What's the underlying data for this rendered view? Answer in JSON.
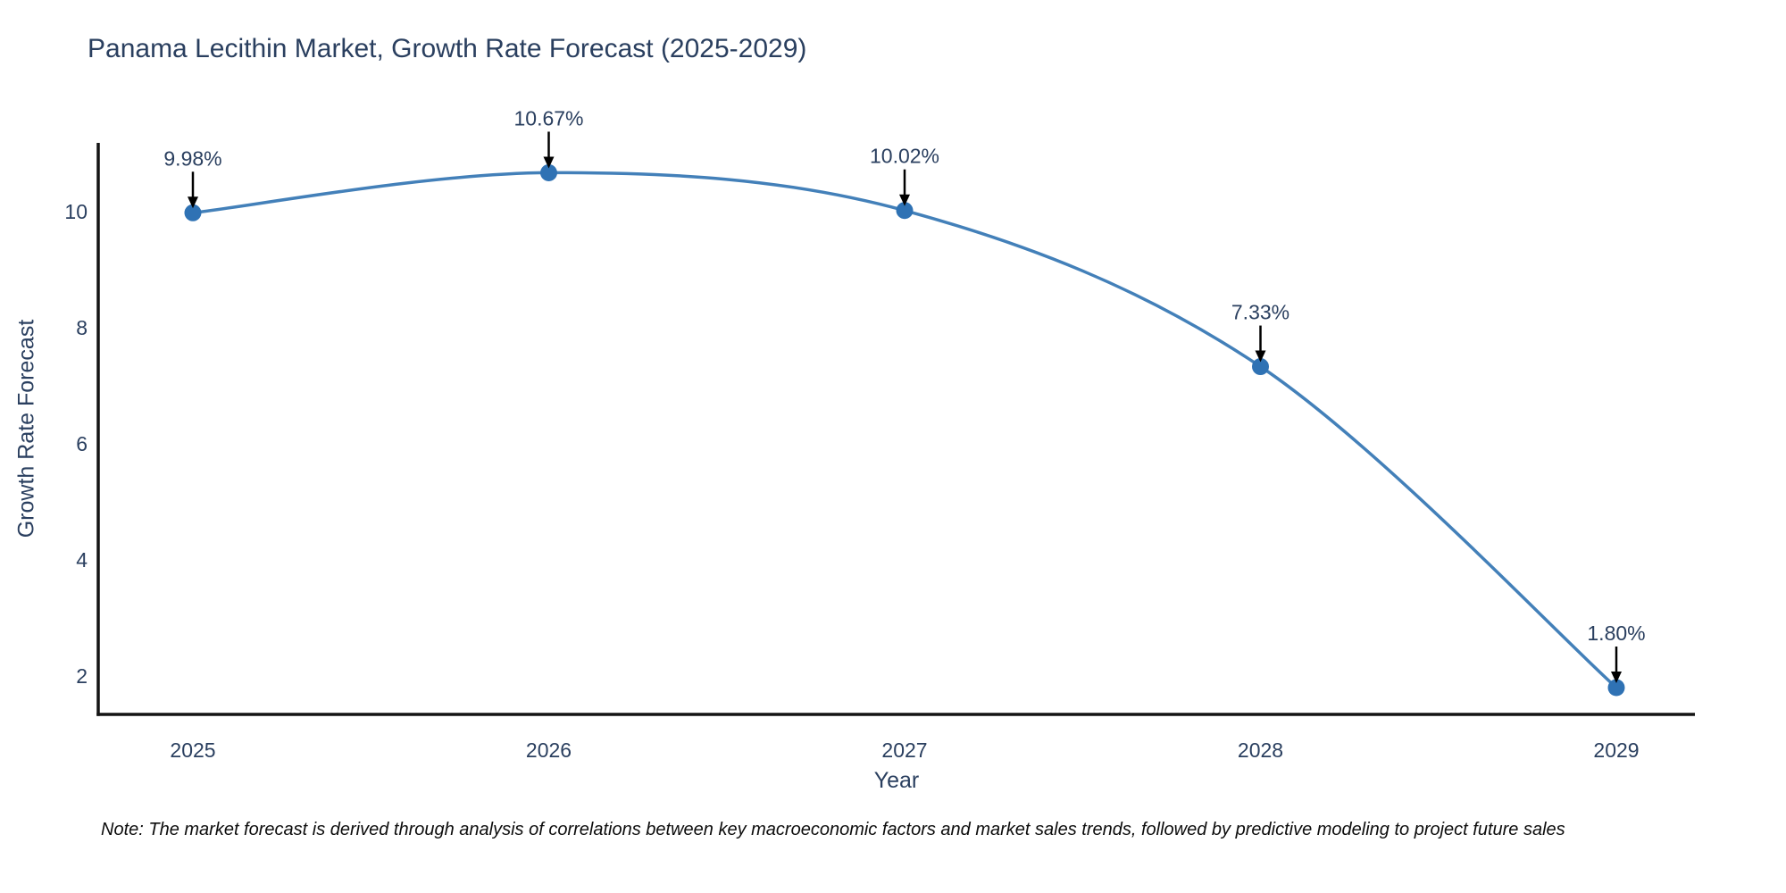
{
  "title": "Panama Lecithin Market, Growth Rate Forecast (2025-2029)",
  "note": "Note: The market forecast is derived through analysis of correlations between key macroeconomic factors and market sales trends, followed by predictive modeling to project future sales",
  "chart_data": {
    "type": "line",
    "title": "Panama Lecithin Market, Growth Rate Forecast (2025-2029)",
    "xlabel": "Year",
    "ylabel": "Growth Rate Forecast",
    "x": [
      2025,
      2026,
      2027,
      2028,
      2029
    ],
    "series": [
      {
        "name": "Growth Rate Forecast",
        "values": [
          9.98,
          10.67,
          10.02,
          7.33,
          1.8
        ]
      }
    ],
    "data_labels": [
      "9.98%",
      "10.67%",
      "10.02%",
      "7.33%",
      "1.80%"
    ],
    "yticks": [
      2,
      4,
      6,
      8,
      10
    ],
    "ylim": [
      1.34,
      11.18
    ],
    "line_shape": "spline",
    "grid": false,
    "legend": "none",
    "colors": {
      "line": "#4380b9",
      "marker": "#2f72b4",
      "axis": "#141414",
      "tick_text": "#2a3f5f",
      "annotation_text": "#2a3f5f",
      "annotation_arrow": "#000000",
      "title_text": "#2a3f5f",
      "background": "#ffffff"
    }
  }
}
